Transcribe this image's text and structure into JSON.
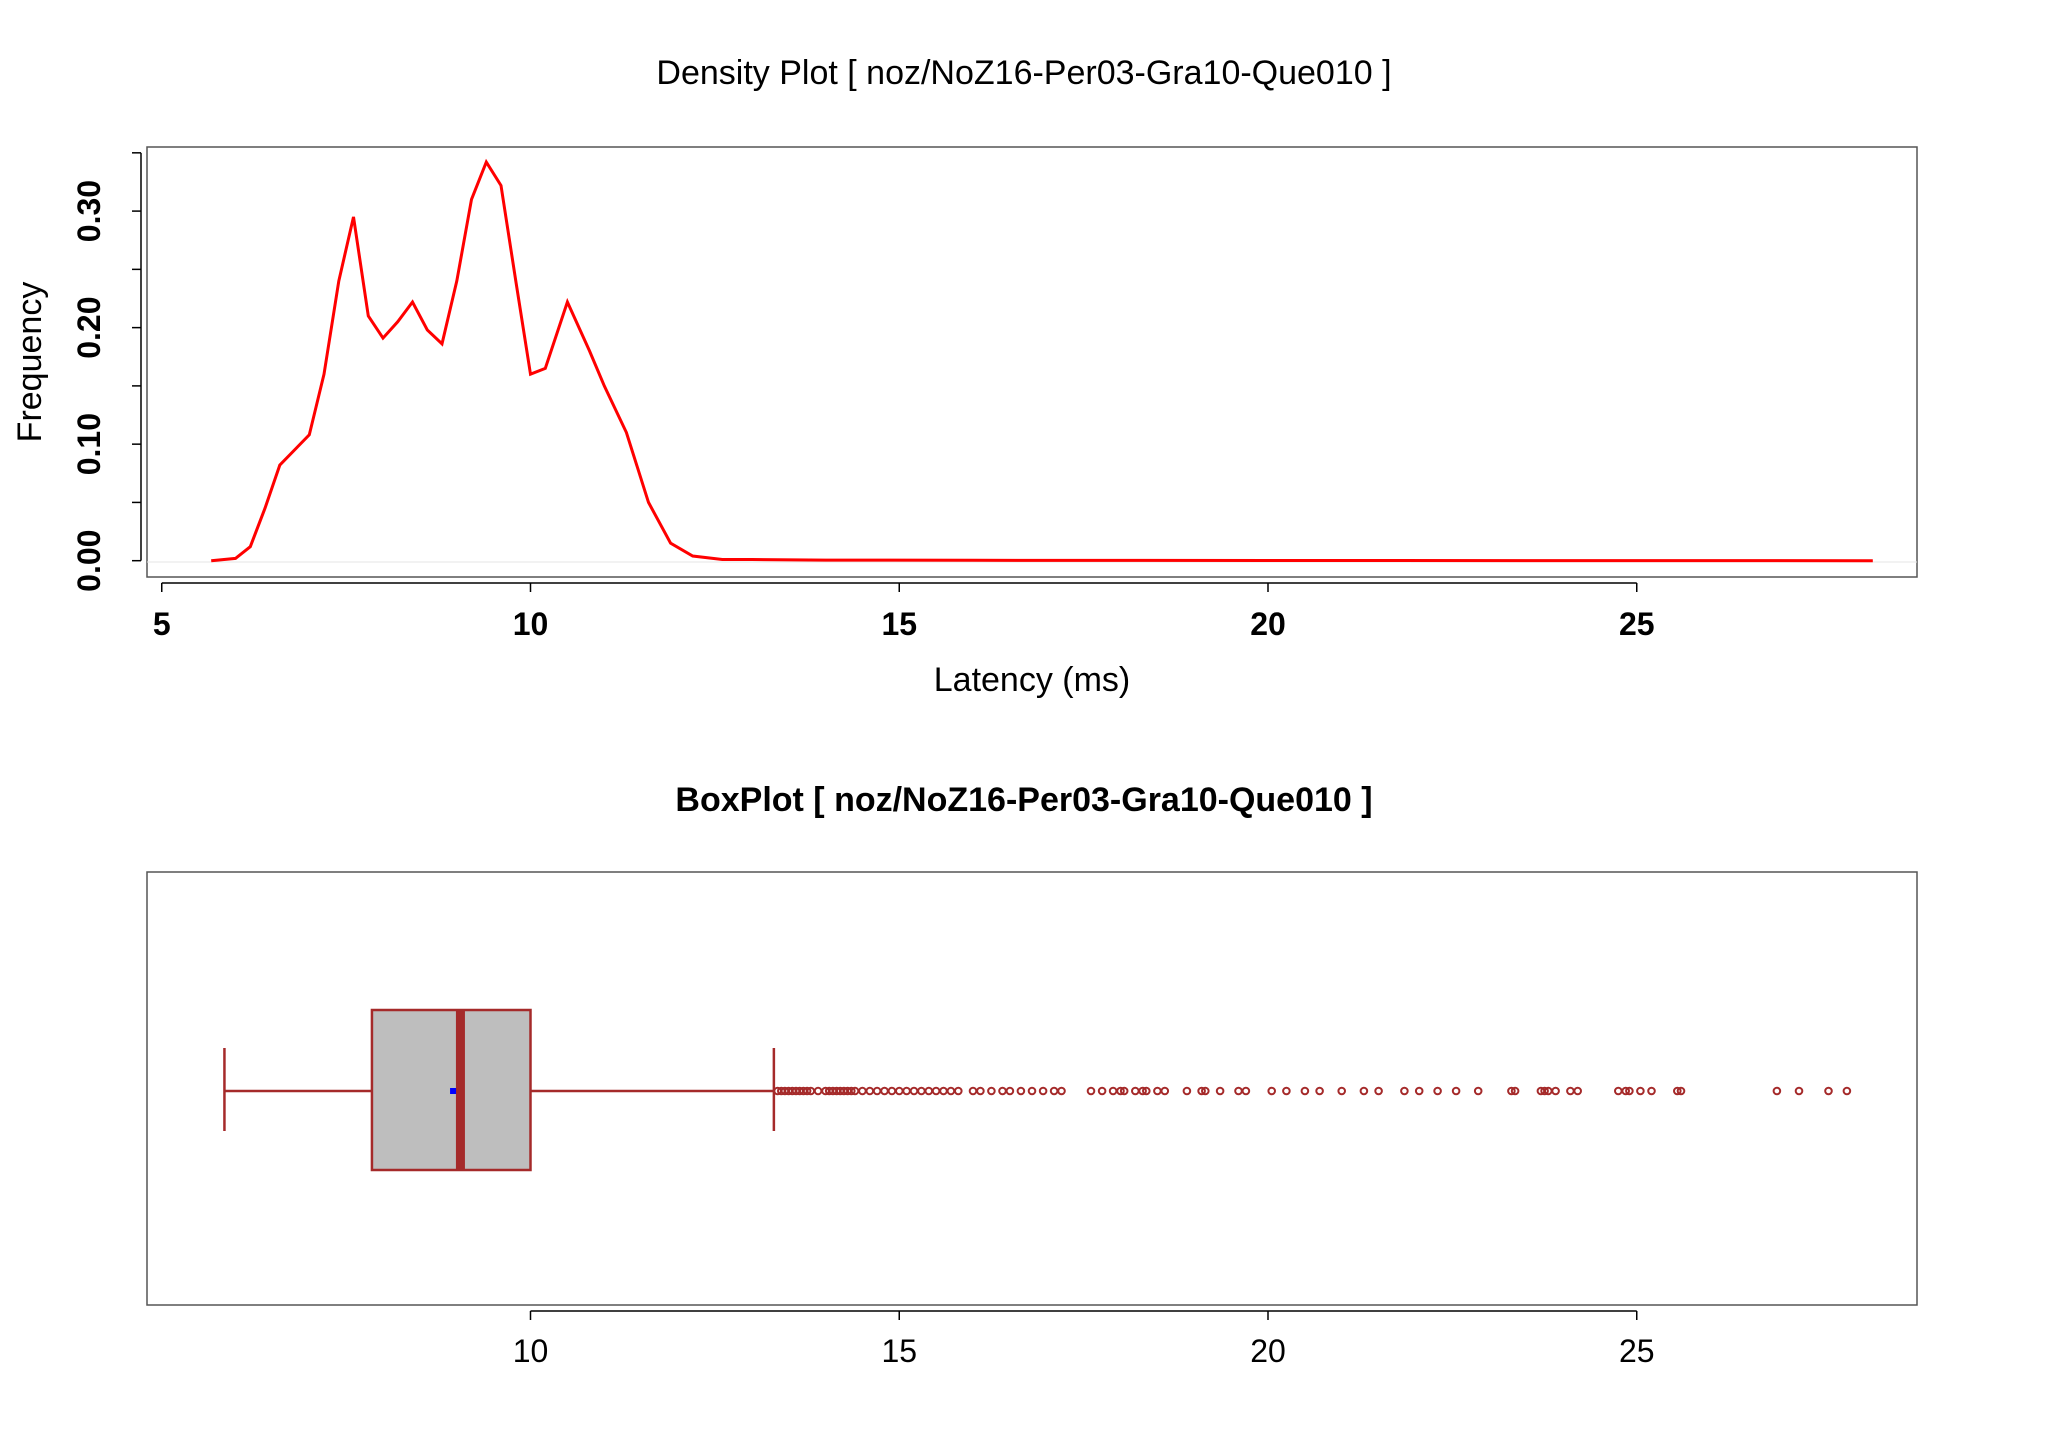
{
  "chart_data": [
    {
      "type": "line",
      "title": "Density Plot [ noz/NoZ16-Per03-Gra10-Que010 ]",
      "xlabel": "Latency (ms)",
      "ylabel": "Frequency",
      "xlim": [
        4.8,
        28.8
      ],
      "ylim": [
        -0.014,
        0.355
      ],
      "x_ticks": [
        "5",
        "10",
        "15",
        "20",
        "25"
      ],
      "y_ticks": [
        "0.00",
        "0.10",
        "0.20",
        "0.30"
      ],
      "series": [
        {
          "color": "#ff0000",
          "x": [
            5.67,
            6.0,
            6.2,
            6.4,
            6.6,
            6.8,
            7.0,
            7.2,
            7.4,
            7.6,
            7.8,
            8.0,
            8.2,
            8.4,
            8.6,
            8.8,
            9.0,
            9.2,
            9.4,
            9.6,
            9.8,
            10.0,
            10.2,
            10.5,
            10.8,
            11.0,
            11.3,
            11.6,
            11.9,
            12.2,
            12.6,
            13.0,
            14.0,
            16.0,
            20.0,
            25.0,
            28.2
          ],
          "y": [
            0.0,
            0.002,
            0.012,
            0.045,
            0.082,
            0.095,
            0.108,
            0.16,
            0.24,
            0.295,
            0.21,
            0.191,
            0.205,
            0.222,
            0.198,
            0.186,
            0.24,
            0.31,
            0.342,
            0.322,
            0.24,
            0.16,
            0.165,
            0.222,
            0.18,
            0.15,
            0.11,
            0.05,
            0.015,
            0.004,
            0.001,
            0.001,
            0.0005,
            0.0003,
            0.0002,
            0.0001,
            0.0
          ]
        }
      ],
      "grid": false,
      "legend": "none"
    },
    {
      "type": "boxplot",
      "title": "BoxPlot [ noz/NoZ16-Per03-Gra10-Que010 ]",
      "orientation": "horizontal",
      "xlim": [
        4.8,
        28.8
      ],
      "x_ticks": [
        "10",
        "15",
        "20",
        "25"
      ],
      "whisker_low": 5.85,
      "q1": 7.85,
      "median": 9.05,
      "q3": 10.0,
      "whisker_high": 13.3,
      "mean": 8.95,
      "box_fill": "#bebebe",
      "line_color": "#a52a2a",
      "mean_color": "#0000ff",
      "outliers": [
        13.35,
        13.4,
        13.45,
        13.5,
        13.55,
        13.6,
        13.65,
        13.7,
        13.75,
        13.8,
        13.9,
        14.0,
        14.05,
        14.1,
        14.15,
        14.2,
        14.25,
        14.3,
        14.35,
        14.4,
        14.5,
        14.6,
        14.7,
        14.8,
        14.9,
        15.0,
        15.1,
        15.2,
        15.3,
        15.4,
        15.5,
        15.6,
        15.7,
        15.8,
        16.0,
        16.1,
        16.25,
        16.4,
        16.5,
        16.65,
        16.8,
        16.95,
        17.1,
        17.2,
        17.6,
        17.75,
        17.9,
        18.0,
        18.05,
        18.2,
        18.3,
        18.35,
        18.5,
        18.6,
        18.9,
        19.1,
        19.15,
        19.35,
        19.6,
        19.7,
        20.05,
        20.25,
        20.5,
        20.7,
        21.0,
        21.3,
        21.5,
        21.85,
        22.05,
        22.3,
        22.55,
        22.85,
        23.3,
        23.35,
        23.7,
        23.75,
        23.8,
        23.9,
        24.1,
        24.2,
        24.75,
        24.85,
        24.9,
        25.05,
        25.2,
        25.55,
        25.6,
        26.9,
        27.2,
        27.6,
        27.85
      ]
    }
  ]
}
